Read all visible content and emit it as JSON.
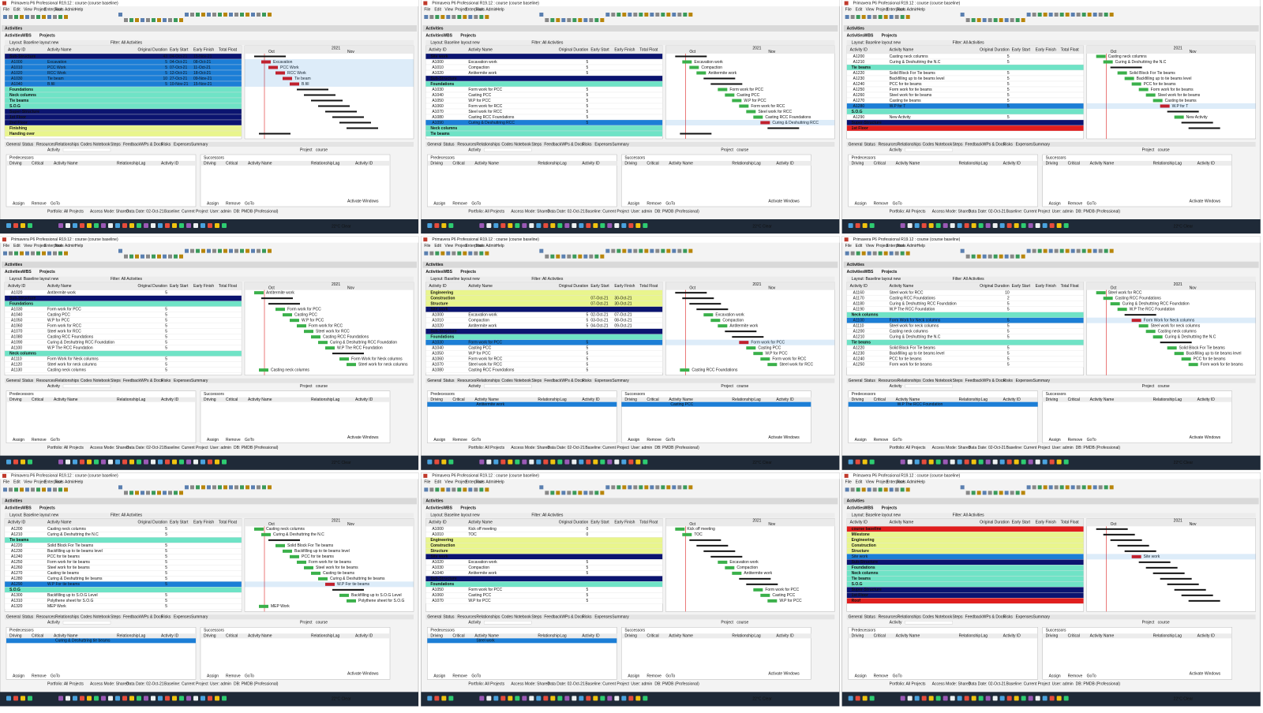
{
  "app": {
    "window_title": "Primavera P6 Professional R19.12 : course (course baseline)",
    "menu": [
      "File",
      "Edit",
      "View",
      "Project",
      "Enterprise",
      "Tools",
      "Admin",
      "Help"
    ],
    "header": "Activities",
    "tabs": [
      "Activities",
      "WBS",
      "Projects"
    ],
    "layout": "Layout: Baseline layout new",
    "filter": "Filter: All Activities",
    "columns": [
      "Activity ID",
      "Activity Name",
      "Original Duration",
      "Early Start",
      "Early Finish",
      "Total Float"
    ],
    "gantt_year": "2021",
    "gantt_months": [
      "Oct",
      "Nov"
    ],
    "detail_tabs": [
      "General",
      "Status",
      "Resources",
      "Relationships",
      "Codes",
      "Notebook",
      "Steps",
      "Feedback",
      "WPs & Docs",
      "Risks",
      "Expenses",
      "Summary"
    ],
    "activity_label": "Activity",
    "project_label": "Project",
    "project_name": "course",
    "pred_title": "Predecessors",
    "succ_title": "Successors",
    "rel_columns": [
      "Driving",
      "Critical",
      "Activity Name",
      "Relationship",
      "Lag",
      "Activity ID"
    ],
    "buttons": [
      "Assign",
      "Remove",
      "GoTo"
    ],
    "watermark": "Activate Windows",
    "status": [
      "Portfolio: All Projects",
      "Access Mode: Shared",
      "Data Date: 02-Oct-21",
      "Baseline: Current Project",
      "User: admin",
      "DB: PMDB (Professional)"
    ],
    "weather": "22°C Clear"
  },
  "panels": [
    {
      "rows": [
        {
          "name": "Sub-Structure",
          "kind": "dark",
          "dur": 43,
          "start": "04-Oct-21",
          "finish": "15-Nov-21"
        },
        {
          "id": "A1000",
          "name": "Excavation",
          "dur": 5,
          "start": "04-Oct-21",
          "finish": "08-Oct-21",
          "kind": "selected"
        },
        {
          "id": "A1010",
          "name": "PCC Work",
          "dur": 5,
          "start": "07-Oct-21",
          "finish": "11-Oct-21",
          "kind": "selected"
        },
        {
          "id": "A1020",
          "name": "RCC Work",
          "dur": 5,
          "start": "12-Oct-21",
          "finish": "18-Oct-21",
          "kind": "selected"
        },
        {
          "id": "A1030",
          "name": "Tie beam",
          "dur": 10,
          "start": "27-Oct-21",
          "finish": "09-Nov-21",
          "kind": "selected"
        },
        {
          "id": "A1040",
          "name": "B.fill",
          "dur": 5,
          "start": "10-Nov-21",
          "finish": "15-Nov-21",
          "kind": "selected"
        },
        {
          "name": "Foundations",
          "kind": "green"
        },
        {
          "name": "Neck columns",
          "kind": "green"
        },
        {
          "name": "Tie beams",
          "kind": "green"
        },
        {
          "name": "S.O.G",
          "kind": "green"
        },
        {
          "name": "Super-Structure",
          "kind": "dark"
        },
        {
          "name": "1st Floor",
          "kind": "dark"
        },
        {
          "name": "2nd Floor",
          "kind": "dark"
        },
        {
          "name": "Finishing",
          "kind": "yellow"
        },
        {
          "name": "Handing over",
          "kind": "yellow"
        }
      ]
    },
    {
      "rows": [
        {
          "name": "Site work",
          "kind": "dark"
        },
        {
          "id": "A1000",
          "name": "Excavation work",
          "dur": 5
        },
        {
          "id": "A1010",
          "name": "Compaction",
          "dur": 5
        },
        {
          "id": "A1020",
          "name": "Antitermite work",
          "dur": 5
        },
        {
          "name": "Sub-Structure",
          "kind": "dark"
        },
        {
          "name": "Foundations",
          "kind": "green"
        },
        {
          "id": "A1030",
          "name": "Form work for PCC",
          "dur": 5
        },
        {
          "id": "A1040",
          "name": "Casting PCC",
          "dur": 5
        },
        {
          "id": "A1050",
          "name": "W.P for PCC",
          "dur": 5
        },
        {
          "id": "A1060",
          "name": "Form work for RCC",
          "dur": 5
        },
        {
          "id": "A1070",
          "name": "Steel work for RCC",
          "dur": 5
        },
        {
          "id": "A1080",
          "name": "Casting RCC Foundations",
          "dur": 5
        },
        {
          "id": "A1090",
          "name": "Curing & Deshuttring RCC",
          "dur": 5,
          "kind": "selected"
        },
        {
          "name": "Neck columns",
          "kind": "green"
        },
        {
          "name": "Tie beams",
          "kind": "green"
        }
      ]
    },
    {
      "rows": [
        {
          "id": "A1200",
          "name": "Casting neck columns",
          "dur": 5
        },
        {
          "id": "A1210",
          "name": "Curing & Deshuttring the N.C",
          "dur": 5
        },
        {
          "name": "Tie beams",
          "kind": "green"
        },
        {
          "id": "A1220",
          "name": "Solid Block For Tie beams",
          "dur": 5
        },
        {
          "id": "A1230",
          "name": "Backfilling up to tie beams level",
          "dur": 5
        },
        {
          "id": "A1240",
          "name": "PCC for tie beams",
          "dur": 5
        },
        {
          "id": "A1250",
          "name": "Form work for tie beams",
          "dur": 5
        },
        {
          "id": "A1260",
          "name": "Steel work for tie beams",
          "dur": 5
        },
        {
          "id": "A1270",
          "name": "Casting tie beams",
          "dur": 5
        },
        {
          "id": "A1280",
          "name": "W.P for T",
          "dur": 5,
          "kind": "selected"
        },
        {
          "name": "S.O.G",
          "kind": "green"
        },
        {
          "id": "A1290",
          "name": "New Activity",
          "dur": 5
        },
        {
          "name": "Super-Structure",
          "kind": "dark"
        },
        {
          "name": "1st Floor",
          "kind": "red"
        }
      ]
    },
    {
      "rows": [
        {
          "id": "A1020",
          "name": "Antitermite work",
          "dur": 5
        },
        {
          "name": "Sub-Structure",
          "kind": "dark"
        },
        {
          "name": "Foundations",
          "kind": "green"
        },
        {
          "id": "A1030",
          "name": "Form work for PCC",
          "dur": 5
        },
        {
          "id": "A1040",
          "name": "Casting PCC",
          "dur": 5
        },
        {
          "id": "A1050",
          "name": "W.P for PCC",
          "dur": 5
        },
        {
          "id": "A1060",
          "name": "Form work for RCC",
          "dur": 5
        },
        {
          "id": "A1070",
          "name": "Steel work for RCC",
          "dur": 5
        },
        {
          "id": "A1080",
          "name": "Casting RCC Foundations",
          "dur": 5
        },
        {
          "id": "A1090",
          "name": "Curing & Deshuttring RCC Foundation",
          "dur": 5
        },
        {
          "id": "A1100",
          "name": "W.P The RCC Foundation",
          "dur": 5
        },
        {
          "name": "Neck columns",
          "kind": "green"
        },
        {
          "id": "A1110",
          "name": "Form Work for Neck columns",
          "dur": 5
        },
        {
          "id": "A1120",
          "name": "Steel work for neck columns",
          "dur": 5
        },
        {
          "id": "A1130",
          "name": "Casting neck columns",
          "dur": 5
        }
      ]
    },
    {
      "rows": [
        {
          "name": "Engineering",
          "kind": "yellow"
        },
        {
          "name": "Construction",
          "kind": "yellow",
          "start": "07-Oct-21",
          "finish": "30-Oct-21"
        },
        {
          "name": "Structure",
          "kind": "yellow",
          "start": "07-Oct-21",
          "finish": "30-Oct-21"
        },
        {
          "name": "Site work",
          "kind": "dark"
        },
        {
          "id": "A1000",
          "name": "Excavation work",
          "dur": 5,
          "start": "02-Oct-21",
          "finish": "07-Oct-21"
        },
        {
          "id": "A1010",
          "name": "Compaction",
          "dur": 5,
          "start": "03-Oct-21",
          "finish": "08-Oct-21"
        },
        {
          "id": "A1020",
          "name": "Antitermite work",
          "dur": 5,
          "start": "04-Oct-21",
          "finish": "09-Oct-21"
        },
        {
          "name": "Sub-Structure",
          "kind": "dark"
        },
        {
          "name": "Foundations",
          "kind": "green"
        },
        {
          "id": "A1030",
          "name": "Form work for PCC",
          "dur": 5,
          "kind": "selected"
        },
        {
          "id": "A1040",
          "name": "Casting PCC",
          "dur": 5
        },
        {
          "id": "A1050",
          "name": "W.P for PCC",
          "dur": 5
        },
        {
          "id": "A1060",
          "name": "Form work for RCC",
          "dur": 5
        },
        {
          "id": "A1070",
          "name": "Steel work for RCC",
          "dur": 5
        },
        {
          "id": "A1080",
          "name": "Casting RCC Foundations",
          "dur": 5
        }
      ],
      "pred": [
        "Antitermite work"
      ],
      "succ": [
        "Casting PCC"
      ]
    },
    {
      "rows": [
        {
          "id": "A1160",
          "name": "Steel work for RCC",
          "dur": 10
        },
        {
          "id": "A1170",
          "name": "Casting RCC Foundations",
          "dur": 2
        },
        {
          "id": "A1180",
          "name": "Curing & Deshuttring RCC Foundation",
          "dur": 5
        },
        {
          "id": "A1190",
          "name": "W.P The RCC Foundation",
          "dur": 5
        },
        {
          "name": "Neck columns",
          "kind": "green"
        },
        {
          "id": "A1100",
          "name": "Form Work for Neck columns",
          "dur": 5,
          "kind": "selected"
        },
        {
          "id": "A1110",
          "name": "Steel work for neck columns",
          "dur": 5
        },
        {
          "id": "A1200",
          "name": "Casting neck columns",
          "dur": 5
        },
        {
          "id": "A1210",
          "name": "Curing & Deshuttring the N.C",
          "dur": 5
        },
        {
          "name": "Tie beams",
          "kind": "green"
        },
        {
          "id": "A1220",
          "name": "Solid Block For Tie beams",
          "dur": 5
        },
        {
          "id": "A1230",
          "name": "Backfilling up to tie beams level",
          "dur": 5
        },
        {
          "id": "A1240",
          "name": "PCC for tie beams",
          "dur": 5
        },
        {
          "id": "A1250",
          "name": "Form work for tie beams",
          "dur": 5
        }
      ],
      "pred": [
        "W.P The RCC Foundation"
      ]
    },
    {
      "rows": [
        {
          "id": "A1200",
          "name": "Casting neck columns",
          "dur": 5
        },
        {
          "id": "A1210",
          "name": "Curing & Deshuttring the N.C",
          "dur": 5
        },
        {
          "name": "Tie beams",
          "kind": "green"
        },
        {
          "id": "A1220",
          "name": "Solid Block For Tie beams",
          "dur": 5
        },
        {
          "id": "A1230",
          "name": "Backfilling up to tie beams level",
          "dur": 5
        },
        {
          "id": "A1240",
          "name": "PCC for tie beams",
          "dur": 5
        },
        {
          "id": "A1250",
          "name": "Form work for tie beams",
          "dur": 5
        },
        {
          "id": "A1260",
          "name": "Steel work for tie beams",
          "dur": 5
        },
        {
          "id": "A1270",
          "name": "Casting tie beams",
          "dur": 5
        },
        {
          "id": "A1280",
          "name": "Curing & Deshuttring tie beams",
          "dur": 5
        },
        {
          "id": "A1290",
          "name": "W.P For tie beams",
          "dur": 5,
          "kind": "selected"
        },
        {
          "name": "S.O.G",
          "kind": "green"
        },
        {
          "id": "A1300",
          "name": "Backfilling up to S.O.G Level",
          "dur": 5
        },
        {
          "id": "A1310",
          "name": "Polythene sheet for S.O.G",
          "dur": 5
        },
        {
          "id": "A1320",
          "name": "MEP Work",
          "dur": 5
        }
      ],
      "pred": [
        "Curing & Deshuttring tie beams"
      ]
    },
    {
      "rows": [
        {
          "id": "A1000",
          "name": "Kick off meeting",
          "dur": 0
        },
        {
          "id": "A1010",
          "name": "TOC",
          "dur": 0
        },
        {
          "name": "Engineering",
          "kind": "yellow"
        },
        {
          "name": "Construction",
          "kind": "yellow"
        },
        {
          "name": "Structure",
          "kind": "yellow"
        },
        {
          "name": "Site work",
          "kind": "dark"
        },
        {
          "id": "A1020",
          "name": "Excavation work",
          "dur": 5
        },
        {
          "id": "A1030",
          "name": "Compaction",
          "dur": 5
        },
        {
          "id": "A1040",
          "name": "Antitermite work",
          "dur": 5
        },
        {
          "name": "Sub-Structure",
          "kind": "dark"
        },
        {
          "name": "Foundations",
          "kind": "green"
        },
        {
          "id": "A1050",
          "name": "Form work for PCC",
          "dur": 5
        },
        {
          "id": "A1060",
          "name": "Casting PCC",
          "dur": 5
        },
        {
          "id": "A1070",
          "name": "W.P for PCC",
          "dur": 5
        }
      ],
      "pred": [
        "Steel work"
      ]
    },
    {
      "rows": [
        {
          "name": "course baseline",
          "kind": "red"
        },
        {
          "name": "Milestone",
          "kind": "yellow"
        },
        {
          "name": "Engineering",
          "kind": "yellow"
        },
        {
          "name": "Construction",
          "kind": "yellow"
        },
        {
          "name": "Structure",
          "kind": "yellow"
        },
        {
          "name": "Site work",
          "kind": "selected"
        },
        {
          "name": "Sub-Structure",
          "kind": "dark"
        },
        {
          "name": "Foundations",
          "kind": "green"
        },
        {
          "name": "Neck columns",
          "kind": "green"
        },
        {
          "name": "Tie beams",
          "kind": "green"
        },
        {
          "name": "S.O.G",
          "kind": "green"
        },
        {
          "name": "Super-Structure",
          "kind": "dark"
        },
        {
          "name": "1st Floor",
          "kind": "dark"
        },
        {
          "name": "Roof",
          "kind": "red"
        }
      ]
    }
  ]
}
